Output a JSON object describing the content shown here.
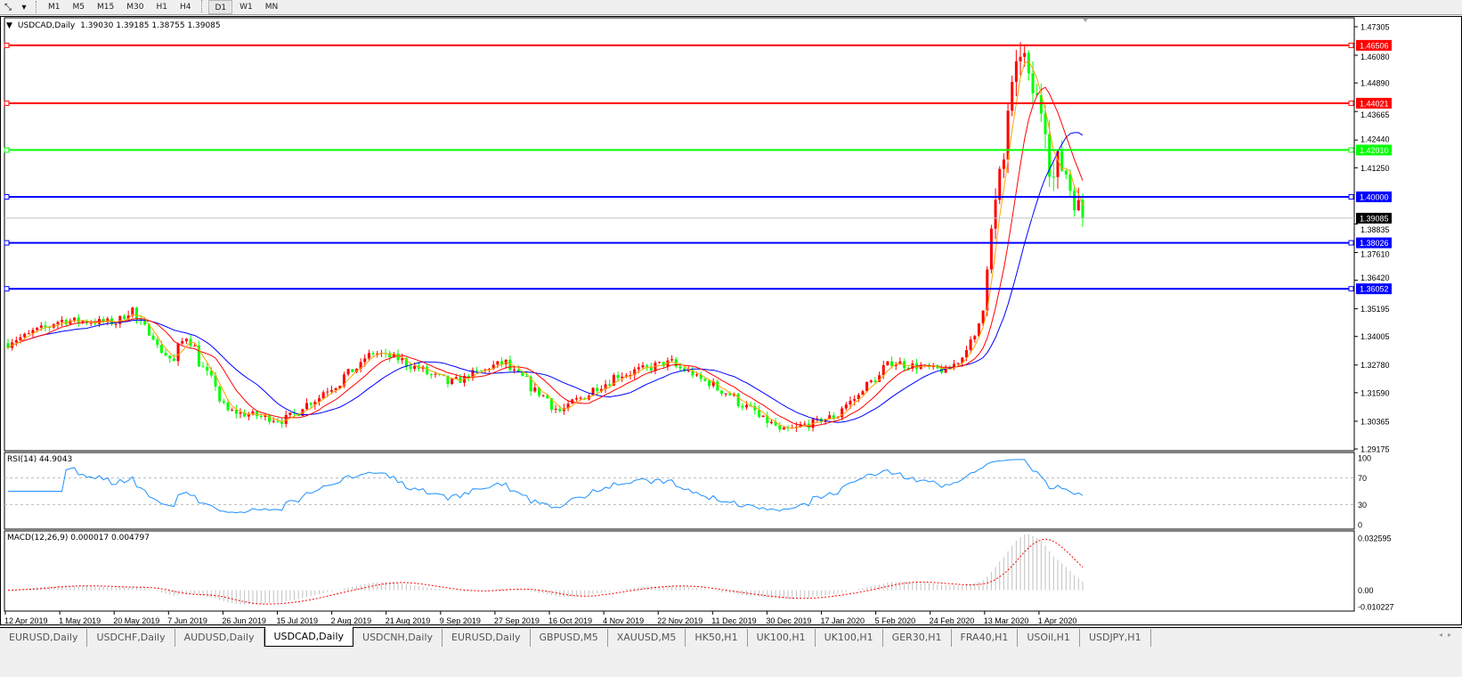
{
  "toolbar": {
    "timeframes": [
      "M1",
      "M5",
      "M15",
      "M30",
      "H1",
      "H4",
      "D1",
      "W1",
      "MN"
    ],
    "active": "D1"
  },
  "chart": {
    "symbol_label": "USDCAD,Daily",
    "ohlc": "1.39030 1.39185 1.38755 1.39085",
    "current_price": "1.39085",
    "price_ticks": [
      "1.47305",
      "1.46080",
      "1.44890",
      "1.43665",
      "1.42440",
      "1.41250",
      "1.38835",
      "1.37610",
      "1.36420",
      "1.35195",
      "1.34005",
      "1.32780",
      "1.31590",
      "1.30365",
      "1.29175"
    ],
    "price_range": [
      1.29175,
      1.47305
    ],
    "levels": [
      {
        "price": "1.46506",
        "color": "#ff0000"
      },
      {
        "price": "1.44021",
        "color": "#ff0000"
      },
      {
        "price": "1.42010",
        "color": "#00ff00"
      },
      {
        "price": "1.40000",
        "color": "#0000ff"
      },
      {
        "price": "1.38026",
        "color": "#0000ff"
      },
      {
        "price": "1.36052",
        "color": "#0000ff"
      }
    ],
    "colors": {
      "bull": "#ff0000",
      "bear": "#00ff00",
      "ma_fast": "#ffa500",
      "ma_mid": "#ff0000",
      "ma_slow": "#0000ff",
      "rsi": "#1e90ff",
      "macd_hist": "#c0c0c0",
      "macd_signal": "#ff0000"
    },
    "close_path": [
      [
        "2019-04-12",
        1.3369
      ],
      [
        "2019-05-01",
        1.347
      ],
      [
        "2019-05-20",
        1.346
      ],
      [
        "2019-05-24",
        1.352
      ],
      [
        "2019-06-07",
        1.329
      ],
      [
        "2019-06-12",
        1.34
      ],
      [
        "2019-06-26",
        1.308
      ],
      [
        "2019-07-15",
        1.304
      ],
      [
        "2019-08-02",
        1.32
      ],
      [
        "2019-08-14",
        1.333
      ],
      [
        "2019-08-21",
        1.331
      ],
      [
        "2019-09-09",
        1.32
      ],
      [
        "2019-09-27",
        1.329
      ],
      [
        "2019-10-16",
        1.308
      ],
      [
        "2019-11-04",
        1.323
      ],
      [
        "2019-11-22",
        1.329
      ],
      [
        "2019-12-11",
        1.316
      ],
      [
        "2019-12-30",
        1.299
      ],
      [
        "2020-01-17",
        1.306
      ],
      [
        "2020-02-05",
        1.329
      ],
      [
        "2020-02-24",
        1.325
      ],
      [
        "2020-03-04",
        1.339
      ],
      [
        "2020-03-09",
        1.373
      ],
      [
        "2020-03-12",
        1.408
      ],
      [
        "2020-03-18",
        1.453
      ],
      [
        "2020-03-19",
        1.463
      ],
      [
        "2020-03-26",
        1.438
      ],
      [
        "2020-03-31",
        1.408
      ],
      [
        "2020-04-01",
        1.415
      ],
      [
        "2020-04-06",
        1.404
      ],
      [
        "2020-04-09",
        1.39085
      ]
    ],
    "dates": [
      "12 Apr 2019",
      "1 May 2019",
      "20 May 2019",
      "7 Jun 2019",
      "26 Jun 2019",
      "15 Jul 2019",
      "2 Aug 2019",
      "21 Aug 2019",
      "9 Sep 2019",
      "27 Sep 2019",
      "16 Oct 2019",
      "4 Nov 2019",
      "22 Nov 2019",
      "11 Dec 2019",
      "30 Dec 2019",
      "17 Jan 2020",
      "5 Feb 2020",
      "24 Feb 2020",
      "13 Mar 2020",
      "1 Apr 2020"
    ]
  },
  "rsi": {
    "label": "RSI(14) 44.9043",
    "ticks": [
      "100",
      "70",
      "30",
      "0"
    ]
  },
  "macd": {
    "label": "MACD(12,26,9) 0.000017 0.004797",
    "ticks": [
      "0.032595",
      "0.00",
      "-0.010227"
    ],
    "range": [
      -0.010227,
      0.032595
    ]
  },
  "tabs": [
    {
      "label": "EURUSD,Daily"
    },
    {
      "label": "USDCHF,Daily"
    },
    {
      "label": "AUDUSD,Daily"
    },
    {
      "label": "USDCAD,Daily",
      "active": true
    },
    {
      "label": "USDCNH,Daily"
    },
    {
      "label": "EURUSD,Daily"
    },
    {
      "label": "GBPUSD,M5"
    },
    {
      "label": "XAUUSD,M5"
    },
    {
      "label": "HK50,H1"
    },
    {
      "label": "UK100,H1"
    },
    {
      "label": "UK100,H1"
    },
    {
      "label": "GER30,H1"
    },
    {
      "label": "FRA40,H1"
    },
    {
      "label": "USOil,H1"
    },
    {
      "label": "USDJPY,H1"
    }
  ]
}
